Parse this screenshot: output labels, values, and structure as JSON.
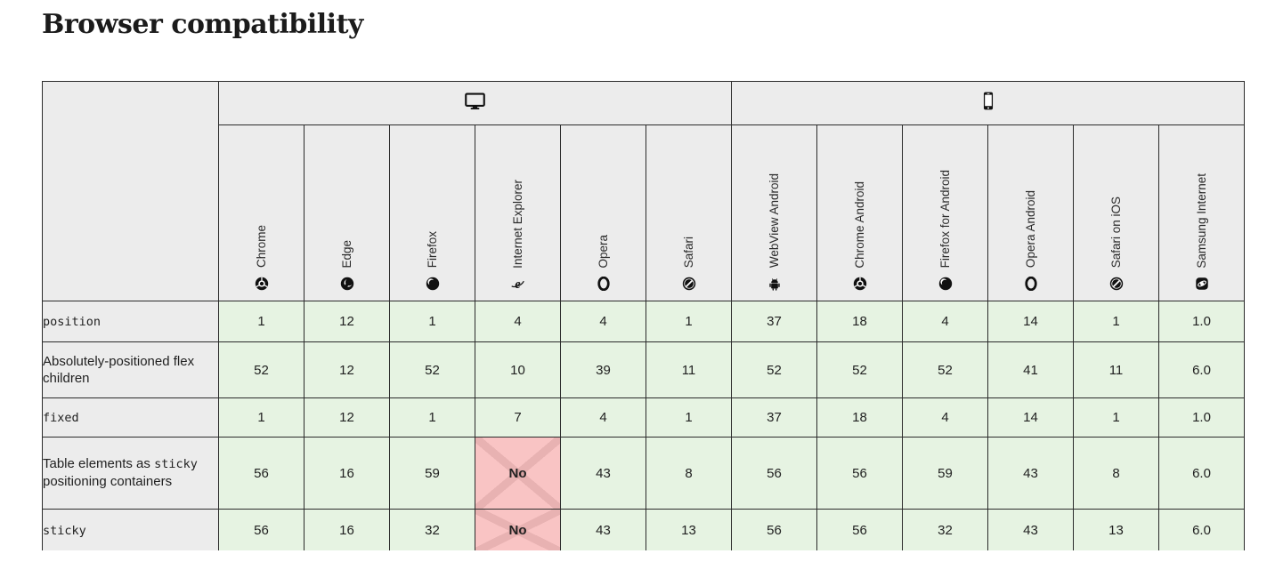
{
  "page": {
    "title": "Browser compatibility"
  },
  "colors": {
    "support_yes_bg": "#e6f3e2",
    "support_no_bg": "#f9c4c4",
    "header_bg": "#ececec",
    "border": "#2b2b2b"
  },
  "table": {
    "platforms": [
      {
        "label": "desktop",
        "icon": "desktop-icon",
        "colspan": 6
      },
      {
        "label": "mobile",
        "icon": "mobile-icon",
        "colspan": 6
      }
    ],
    "browsers": [
      {
        "name": "Chrome",
        "icon": "chrome-icon"
      },
      {
        "name": "Edge",
        "icon": "edge-icon"
      },
      {
        "name": "Firefox",
        "icon": "firefox-icon"
      },
      {
        "name": "Internet Explorer",
        "icon": "internet-explorer-icon"
      },
      {
        "name": "Opera",
        "icon": "opera-icon"
      },
      {
        "name": "Safari",
        "icon": "safari-icon"
      },
      {
        "name": "WebView Android",
        "icon": "webview-android-icon"
      },
      {
        "name": "Chrome Android",
        "icon": "chrome-android-icon"
      },
      {
        "name": "Firefox for Android",
        "icon": "firefox-android-icon"
      },
      {
        "name": "Opera Android",
        "icon": "opera-android-icon"
      },
      {
        "name": "Safari on iOS",
        "icon": "safari-ios-icon"
      },
      {
        "name": "Samsung Internet",
        "icon": "samsung-internet-icon"
      }
    ],
    "rows": [
      {
        "label": [
          {
            "text": "position",
            "code": true
          }
        ],
        "cells": [
          {
            "value": "1",
            "support": "yes"
          },
          {
            "value": "12",
            "support": "yes"
          },
          {
            "value": "1",
            "support": "yes"
          },
          {
            "value": "4",
            "support": "yes"
          },
          {
            "value": "4",
            "support": "yes"
          },
          {
            "value": "1",
            "support": "yes"
          },
          {
            "value": "37",
            "support": "yes"
          },
          {
            "value": "18",
            "support": "yes"
          },
          {
            "value": "4",
            "support": "yes"
          },
          {
            "value": "14",
            "support": "yes"
          },
          {
            "value": "1",
            "support": "yes"
          },
          {
            "value": "1.0",
            "support": "yes"
          }
        ]
      },
      {
        "label": [
          {
            "text": "Absolutely-positioned flex children",
            "code": false
          }
        ],
        "cells": [
          {
            "value": "52",
            "support": "yes"
          },
          {
            "value": "12",
            "support": "yes"
          },
          {
            "value": "52",
            "support": "yes"
          },
          {
            "value": "10",
            "support": "yes"
          },
          {
            "value": "39",
            "support": "yes"
          },
          {
            "value": "11",
            "support": "yes"
          },
          {
            "value": "52",
            "support": "yes"
          },
          {
            "value": "52",
            "support": "yes"
          },
          {
            "value": "52",
            "support": "yes"
          },
          {
            "value": "41",
            "support": "yes"
          },
          {
            "value": "11",
            "support": "yes"
          },
          {
            "value": "6.0",
            "support": "yes"
          }
        ]
      },
      {
        "label": [
          {
            "text": "fixed",
            "code": true
          }
        ],
        "cells": [
          {
            "value": "1",
            "support": "yes"
          },
          {
            "value": "12",
            "support": "yes"
          },
          {
            "value": "1",
            "support": "yes"
          },
          {
            "value": "7",
            "support": "yes"
          },
          {
            "value": "4",
            "support": "yes"
          },
          {
            "value": "1",
            "support": "yes"
          },
          {
            "value": "37",
            "support": "yes"
          },
          {
            "value": "18",
            "support": "yes"
          },
          {
            "value": "4",
            "support": "yes"
          },
          {
            "value": "14",
            "support": "yes"
          },
          {
            "value": "1",
            "support": "yes"
          },
          {
            "value": "1.0",
            "support": "yes"
          }
        ]
      },
      {
        "label": [
          {
            "text": "Table elements as ",
            "code": false
          },
          {
            "text": "sticky",
            "code": true
          },
          {
            "text": " positioning containers",
            "code": false
          }
        ],
        "cells": [
          {
            "value": "56",
            "support": "yes"
          },
          {
            "value": "16",
            "support": "yes"
          },
          {
            "value": "59",
            "support": "yes"
          },
          {
            "value": "No",
            "support": "no"
          },
          {
            "value": "43",
            "support": "yes"
          },
          {
            "value": "8",
            "support": "yes"
          },
          {
            "value": "56",
            "support": "yes"
          },
          {
            "value": "56",
            "support": "yes"
          },
          {
            "value": "59",
            "support": "yes"
          },
          {
            "value": "43",
            "support": "yes"
          },
          {
            "value": "8",
            "support": "yes"
          },
          {
            "value": "6.0",
            "support": "yes"
          }
        ]
      },
      {
        "label": [
          {
            "text": "sticky",
            "code": true
          }
        ],
        "cells": [
          {
            "value": "56",
            "support": "yes"
          },
          {
            "value": "16",
            "support": "yes"
          },
          {
            "value": "32",
            "support": "yes"
          },
          {
            "value": "No",
            "support": "no"
          },
          {
            "value": "43",
            "support": "yes"
          },
          {
            "value": "13",
            "support": "yes"
          },
          {
            "value": "56",
            "support": "yes"
          },
          {
            "value": "56",
            "support": "yes"
          },
          {
            "value": "32",
            "support": "yes"
          },
          {
            "value": "43",
            "support": "yes"
          },
          {
            "value": "13",
            "support": "yes"
          },
          {
            "value": "6.0",
            "support": "yes"
          }
        ]
      }
    ]
  }
}
